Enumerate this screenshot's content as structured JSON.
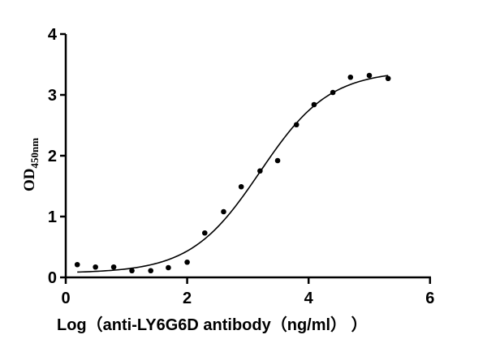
{
  "chart_data": {
    "type": "scatter",
    "title": "",
    "xlabel": "Log（anti-LY6G6D antibody（ng/ml） ）",
    "ylabel": "OD",
    "ylabel_subscript": "450nm",
    "xlim": [
      0,
      6
    ],
    "ylim": [
      0,
      4
    ],
    "xticks": [
      0,
      2,
      4,
      6
    ],
    "yticks": [
      0,
      1,
      2,
      3,
      4
    ],
    "grid": false,
    "legend": null,
    "series": [
      {
        "name": "measured",
        "type": "scatter",
        "color": "#000000",
        "x": [
          0.19,
          0.49,
          0.79,
          1.09,
          1.4,
          1.69,
          2.0,
          2.29,
          2.6,
          2.89,
          3.2,
          3.49,
          3.8,
          4.09,
          4.4,
          4.69,
          5.0,
          5.31
        ],
        "y": [
          0.21,
          0.17,
          0.17,
          0.11,
          0.11,
          0.16,
          0.25,
          0.73,
          1.08,
          1.49,
          1.75,
          1.92,
          2.51,
          2.84,
          3.04,
          3.29,
          3.32,
          3.27
        ]
      },
      {
        "name": "fitted curve",
        "type": "line",
        "color": "#000000",
        "model": "sigmoidal 4PL",
        "params": {
          "bottom": 0.07,
          "top": 3.4,
          "logEC50": 3.2,
          "slope": 1.75
        },
        "x_range": [
          0.19,
          5.31
        ]
      }
    ]
  },
  "plot": {
    "x_tick_labels": [
      "0",
      "2",
      "4",
      "6"
    ],
    "y_tick_labels": [
      "0",
      "1",
      "2",
      "3",
      "4"
    ]
  }
}
